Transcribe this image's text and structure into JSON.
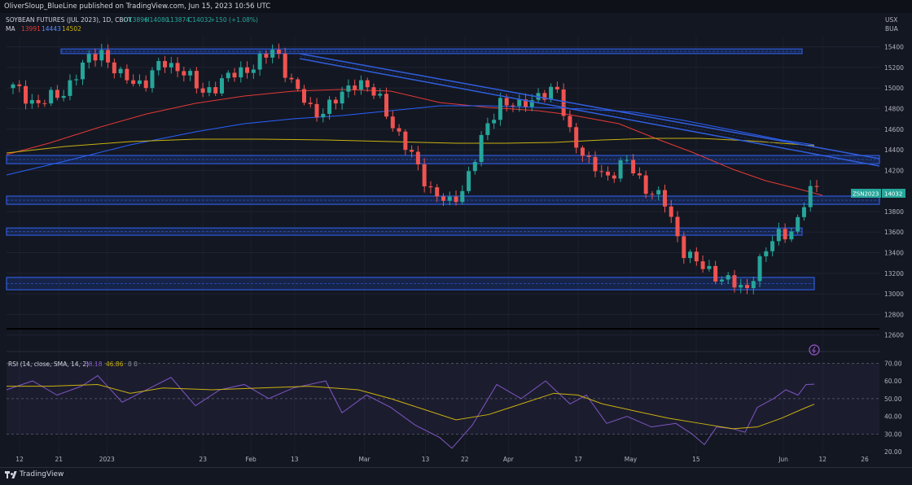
{
  "header": {
    "publisher": "OliverSloup_BlueLine published on TradingView.com, Jun 15, 2023 10:56 UTC",
    "symbol_line": "SOYBEAN FUTURES (JUL 2023), 1D, CBOT",
    "ohlc": {
      "o": "O13896",
      "h": "H14080",
      "l": "L13874",
      "c": "C14032",
      "chg": "+150 (+1.08%)"
    },
    "ma_label": "MA",
    "ma_values": [
      "13991",
      "14443",
      "14502"
    ],
    "currency": "USX",
    "unit": "BUA"
  },
  "colors": {
    "up": "#26a69a",
    "down": "#ef5350",
    "ma_red": "#e53935",
    "ma_blue": "#2962ff",
    "ma_yellow": "#c9b20e",
    "zone": "#2f5bd6",
    "rsi": "#7e57c2",
    "rsi_ma": "#c9b20e"
  },
  "price_axis": {
    "labels": [
      "15400",
      "15200",
      "15000",
      "14800",
      "14600",
      "14400",
      "14200",
      "13800",
      "13600",
      "13400",
      "13200",
      "13000",
      "12800",
      "12600"
    ],
    "current_tag": "ZSN2023",
    "current_price": "14032"
  },
  "time_axis": {
    "labels": [
      "12",
      "21",
      "2023",
      "23",
      "Feb",
      "13",
      "Mar",
      "13",
      "22",
      "Apr",
      "17",
      "May",
      "15",
      "Jun",
      "12",
      "26"
    ]
  },
  "rsi": {
    "label": "RSI (14, close, SMA, 14, 2)",
    "value": "58.18",
    "ma_value": "46.86",
    "extra": "0  0",
    "levels": [
      "70.00",
      "60.00",
      "50.00",
      "40.00",
      "30.00",
      "20.00"
    ]
  },
  "footer": {
    "brand": "TradingView"
  },
  "chart_data": [
    {
      "type": "candlestick",
      "title": "SOYBEAN FUTURES (JUL 2023), 1D, CBOT",
      "ylim": [
        12550,
        15500
      ],
      "x_range": [
        "Dec 9",
        "Jun 27"
      ],
      "moving_averages": [
        {
          "name": "MA",
          "last": 13991
        },
        {
          "name": "MA",
          "last": 14443
        },
        {
          "name": "MA",
          "last": 14502
        }
      ],
      "support_resistance_zones": [
        {
          "low": 15335,
          "high": 15380
        },
        {
          "low": 14265,
          "high": 14345
        },
        {
          "low": 13870,
          "high": 13950
        },
        {
          "low": 13570,
          "high": 13640
        },
        {
          "low": 13040,
          "high": 13160
        }
      ],
      "trendline": {
        "from": [
          "Feb 17",
          15380
        ],
        "to": [
          "Jun 28",
          14300
        ]
      },
      "last_close": 14032
    },
    {
      "type": "line",
      "title": "RSI (14, close, SMA, 14, 2)",
      "ylim": [
        15,
        72
      ],
      "levels": [
        70,
        50,
        30
      ],
      "last_rsi": 58.18,
      "last_rsi_ma": 46.86
    }
  ]
}
